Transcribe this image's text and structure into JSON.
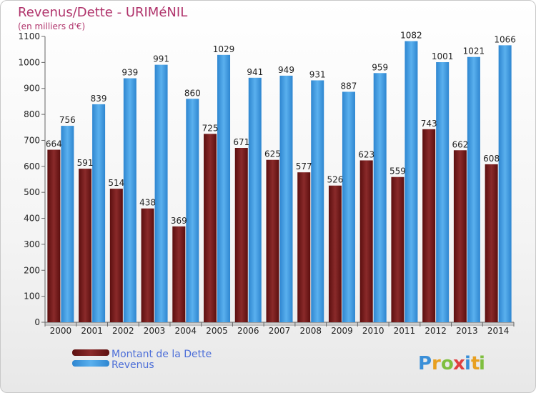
{
  "chart_data": {
    "type": "bar",
    "title": "Revenus/Dette - URIMéNIL",
    "subtitle": "(en milliers d'€)",
    "categories": [
      "2000",
      "2001",
      "2002",
      "2003",
      "2004",
      "2005",
      "2006",
      "2007",
      "2008",
      "2009",
      "2010",
      "2011",
      "2012",
      "2013",
      "2014"
    ],
    "series": [
      {
        "name": "Montant de la Dette",
        "color": "#7a1c1c",
        "values": [
          664,
          591,
          514,
          438,
          369,
          725,
          671,
          625,
          577,
          526,
          623,
          559,
          743,
          662,
          608
        ]
      },
      {
        "name": "Revenus",
        "color": "#4aa3e6",
        "values": [
          756,
          839,
          939,
          991,
          860,
          1029,
          941,
          949,
          931,
          887,
          959,
          1082,
          1001,
          1021,
          1066
        ]
      }
    ],
    "ylim": [
      0,
      1100
    ],
    "yticks": [
      0,
      100,
      200,
      300,
      400,
      500,
      600,
      700,
      800,
      900,
      1000,
      1100
    ],
    "grid": false,
    "legend": "bottom-left"
  },
  "logo": {
    "letters": [
      "P",
      "r",
      "o",
      "x",
      "i",
      "t",
      "i"
    ],
    "colors": [
      "#3a8fd8",
      "#e8a020",
      "#7fbf3f",
      "#e04040",
      "#3a8fd8",
      "#e8a020",
      "#7fbf3f"
    ]
  }
}
